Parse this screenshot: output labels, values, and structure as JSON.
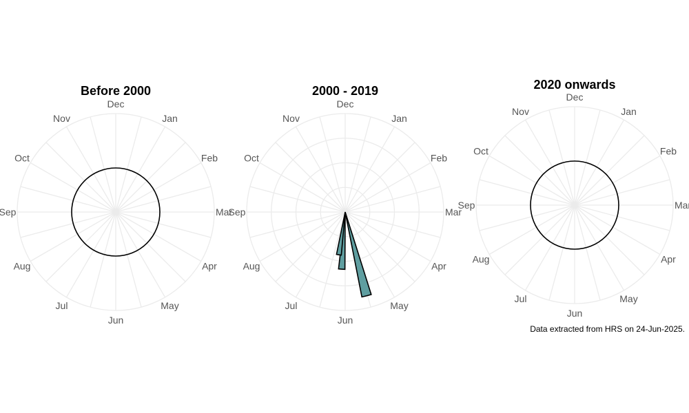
{
  "caption": "Data extracted from HRS on 24-Jun-2025.",
  "colors": {
    "bar_fill": "#5f9ea0",
    "grid": "#ebebeb",
    "outline": "#000000",
    "label": "#555555"
  },
  "chart_data": [
    {
      "type": "polar-bar",
      "title": "Before 2000",
      "months": [
        "Jan",
        "Feb",
        "Mar",
        "Apr",
        "May",
        "Jun",
        "Jul",
        "Aug",
        "Sep",
        "Oct",
        "Nov",
        "Dec"
      ],
      "values": [
        0,
        0,
        0,
        0,
        0,
        0,
        0,
        0,
        0,
        0,
        0,
        0
      ],
      "reference_circle": true,
      "radial_grid": false
    },
    {
      "type": "polar-bar",
      "title": "2000 - 2019",
      "months": [
        "Jan",
        "Feb",
        "Mar",
        "Apr",
        "May",
        "Jun",
        "Jul",
        "Aug",
        "Sep",
        "Oct",
        "Nov",
        "Dec"
      ],
      "values": [
        0,
        0,
        0,
        0,
        0,
        4,
        3,
        0,
        0,
        0,
        0,
        0
      ],
      "bars": [
        {
          "day_of_year": 168,
          "value": 4.0
        },
        {
          "day_of_year": 186,
          "value": 2.65
        },
        {
          "day_of_year": 191,
          "value": 2.0
        }
      ],
      "r_max": 4.55,
      "reference_circle": false,
      "radial_grid": true
    },
    {
      "type": "polar-bar",
      "title": "2020 onwards",
      "months": [
        "Jan",
        "Feb",
        "Mar",
        "Apr",
        "May",
        "Jun",
        "Jul",
        "Aug",
        "Sep",
        "Oct",
        "Nov",
        "Dec"
      ],
      "values": [
        0,
        0,
        0,
        0,
        0,
        0,
        0,
        0,
        0,
        0,
        0,
        0
      ],
      "reference_circle": true,
      "radial_grid": false
    }
  ]
}
